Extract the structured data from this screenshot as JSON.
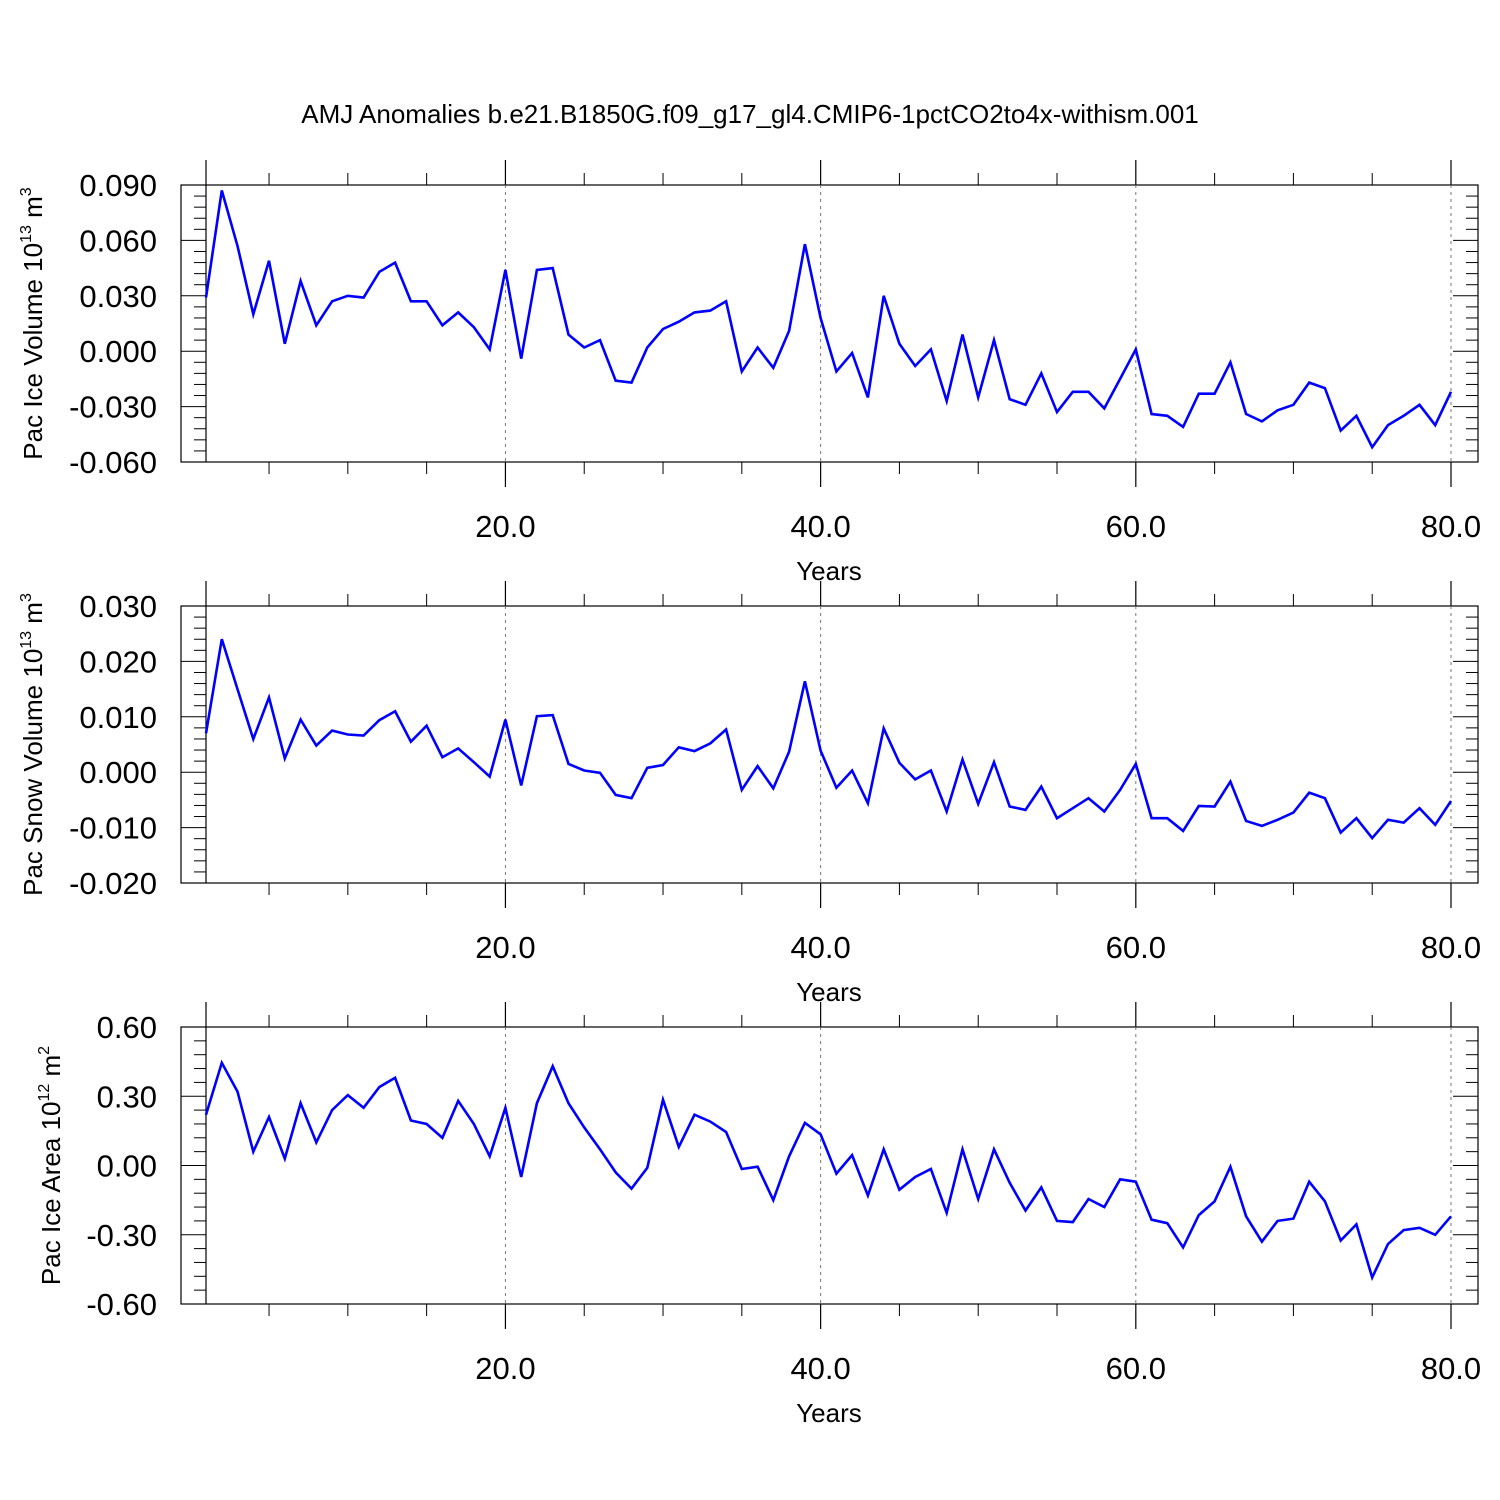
{
  "chart_data": [
    {
      "type": "line",
      "title": "AMJ Anomalies b.e21.B1850G.f09_g17_gl4.CMIP6-1pctCO2to4x-withism.001",
      "ylabel_text": "Pac Ice Volume 10",
      "ylabel_exp": "13",
      "ylabel_unit": " m",
      "ylabel_unit_exp": "3",
      "xlabel": "Years",
      "xlim": [
        1,
        80
      ],
      "ylim": [
        -0.06,
        0.09
      ],
      "xticks": [
        "20.0",
        "40.0",
        "60.0",
        "80.0"
      ],
      "xtick_values": [
        20,
        40,
        60,
        80
      ],
      "yticks": [
        "-0.060",
        "-0.030",
        "0.000",
        "0.030",
        "0.060",
        "0.090"
      ],
      "ytick_values": [
        -0.06,
        -0.03,
        0.0,
        0.03,
        0.06,
        0.09
      ],
      "grid": "vertical dashed at major x ticks",
      "series_color": "#0000ff",
      "x": [
        1,
        2,
        3,
        4,
        5,
        6,
        7,
        8,
        9,
        10,
        11,
        12,
        13,
        14,
        15,
        16,
        17,
        18,
        19,
        20,
        21,
        22,
        23,
        24,
        25,
        26,
        27,
        28,
        29,
        30,
        31,
        32,
        33,
        34,
        35,
        36,
        37,
        38,
        39,
        40,
        41,
        42,
        43,
        44,
        45,
        46,
        47,
        48,
        49,
        50,
        51,
        52,
        53,
        54,
        55,
        56,
        57,
        58,
        59,
        60,
        61,
        62,
        63,
        64,
        65,
        66,
        67,
        68,
        69,
        70,
        71,
        72,
        73,
        74,
        75,
        76,
        77,
        78,
        79,
        80
      ],
      "values": [
        0.029,
        0.087,
        0.057,
        0.02,
        0.049,
        0.004,
        0.038,
        0.014,
        0.027,
        0.03,
        0.029,
        0.043,
        0.048,
        0.027,
        0.027,
        0.014,
        0.021,
        0.013,
        0.001,
        0.044,
        -0.004,
        0.044,
        0.045,
        0.009,
        0.002,
        0.006,
        -0.016,
        -0.017,
        0.002,
        0.012,
        0.016,
        0.021,
        0.022,
        0.027,
        -0.011,
        0.002,
        -0.009,
        0.011,
        0.058,
        0.018,
        -0.011,
        -0.001,
        -0.025,
        0.03,
        0.004,
        -0.008,
        0.001,
        -0.027,
        0.009,
        -0.025,
        0.006,
        -0.026,
        -0.029,
        -0.012,
        -0.033,
        -0.022,
        -0.022,
        -0.031,
        -0.015,
        0.001,
        -0.034,
        -0.035,
        -0.041,
        -0.023,
        -0.023,
        -0.006,
        -0.034,
        -0.038,
        -0.032,
        -0.029,
        -0.017,
        -0.02,
        -0.043,
        -0.035,
        -0.052,
        -0.04,
        -0.035,
        -0.029,
        -0.04,
        -0.022
      ]
    },
    {
      "type": "line",
      "title": "",
      "ylabel_text": "Pac Snow Volume 10",
      "ylabel_exp": "13",
      "ylabel_unit": " m",
      "ylabel_unit_exp": "3",
      "xlabel": "Years",
      "xlim": [
        1,
        80
      ],
      "ylim": [
        -0.02,
        0.03
      ],
      "xticks": [
        "20.0",
        "40.0",
        "60.0",
        "80.0"
      ],
      "xtick_values": [
        20,
        40,
        60,
        80
      ],
      "yticks": [
        "-0.020",
        "-0.010",
        "0.000",
        "0.010",
        "0.020",
        "0.030"
      ],
      "ytick_values": [
        -0.02,
        -0.01,
        0.0,
        0.01,
        0.02,
        0.03
      ],
      "grid": "vertical dashed at major x ticks",
      "series_color": "#0000ff",
      "x": [
        1,
        2,
        3,
        4,
        5,
        6,
        7,
        8,
        9,
        10,
        11,
        12,
        13,
        14,
        15,
        16,
        17,
        18,
        19,
        20,
        21,
        22,
        23,
        24,
        25,
        26,
        27,
        28,
        29,
        30,
        31,
        32,
        33,
        34,
        35,
        36,
        37,
        38,
        39,
        40,
        41,
        42,
        43,
        44,
        45,
        46,
        47,
        48,
        49,
        50,
        51,
        52,
        53,
        54,
        55,
        56,
        57,
        58,
        59,
        60,
        61,
        62,
        63,
        64,
        65,
        66,
        67,
        68,
        69,
        70,
        71,
        72,
        73,
        74,
        75,
        76,
        77,
        78,
        79,
        80
      ],
      "values": [
        0.007,
        0.024,
        0.015,
        0.006,
        0.0135,
        0.0025,
        0.0095,
        0.0048,
        0.0075,
        0.0068,
        0.0066,
        0.0094,
        0.011,
        0.0055,
        0.0084,
        0.0027,
        0.0043,
        0.0018,
        -0.0008,
        0.0095,
        -0.0024,
        0.0101,
        0.0103,
        0.0015,
        0.0003,
        -0.0001,
        -0.0041,
        -0.0047,
        0.0008,
        0.0013,
        0.0045,
        0.0038,
        0.0052,
        0.0077,
        -0.0032,
        0.0011,
        -0.0029,
        0.0037,
        0.0164,
        0.0039,
        -0.0028,
        0.0003,
        -0.0056,
        0.0079,
        0.0017,
        -0.0013,
        0.0003,
        -0.0071,
        0.0023,
        -0.0057,
        0.0018,
        -0.0062,
        -0.0068,
        -0.0026,
        -0.0083,
        -0.0065,
        -0.0047,
        -0.0071,
        -0.0032,
        0.0015,
        -0.0083,
        -0.0083,
        -0.0106,
        -0.0061,
        -0.0062,
        -0.0017,
        -0.0088,
        -0.0097,
        -0.0086,
        -0.0073,
        -0.0037,
        -0.0047,
        -0.0109,
        -0.0083,
        -0.0119,
        -0.0086,
        -0.0091,
        -0.0065,
        -0.0095,
        -0.0052
      ]
    },
    {
      "type": "line",
      "title": "",
      "ylabel_text": "Pac Ice Area 10",
      "ylabel_exp": "12",
      "ylabel_unit": " m",
      "ylabel_unit_exp": "2",
      "xlabel": "Years",
      "xlim": [
        1,
        80
      ],
      "ylim": [
        -0.6,
        0.6
      ],
      "xticks": [
        "20.0",
        "40.0",
        "60.0",
        "80.0"
      ],
      "xtick_values": [
        20,
        40,
        60,
        80
      ],
      "yticks": [
        "-0.60",
        "-0.30",
        "0.00",
        "0.30",
        "0.60"
      ],
      "ytick_values": [
        -0.6,
        -0.3,
        0.0,
        0.3,
        0.6
      ],
      "grid": "vertical dashed at major x ticks",
      "series_color": "#0000ff",
      "x": [
        1,
        2,
        3,
        4,
        5,
        6,
        7,
        8,
        9,
        10,
        11,
        12,
        13,
        14,
        15,
        16,
        17,
        18,
        19,
        20,
        21,
        22,
        23,
        24,
        25,
        26,
        27,
        28,
        29,
        30,
        31,
        32,
        33,
        34,
        35,
        36,
        37,
        38,
        39,
        40,
        41,
        42,
        43,
        44,
        45,
        46,
        47,
        48,
        49,
        50,
        51,
        52,
        53,
        54,
        55,
        56,
        57,
        58,
        59,
        60,
        61,
        62,
        63,
        64,
        65,
        66,
        67,
        68,
        69,
        70,
        71,
        72,
        73,
        74,
        75,
        76,
        77,
        78,
        79,
        80
      ],
      "values": [
        0.22,
        0.445,
        0.32,
        0.06,
        0.21,
        0.03,
        0.27,
        0.1,
        0.24,
        0.305,
        0.25,
        0.34,
        0.38,
        0.195,
        0.18,
        0.12,
        0.28,
        0.18,
        0.04,
        0.25,
        -0.05,
        0.27,
        0.43,
        0.27,
        0.165,
        0.07,
        -0.03,
        -0.1,
        -0.01,
        0.285,
        0.08,
        0.22,
        0.19,
        0.145,
        -0.015,
        -0.005,
        -0.15,
        0.04,
        0.185,
        0.135,
        -0.035,
        0.045,
        -0.13,
        0.07,
        -0.105,
        -0.05,
        -0.015,
        -0.205,
        0.07,
        -0.145,
        0.07,
        -0.075,
        -0.195,
        -0.095,
        -0.24,
        -0.245,
        -0.145,
        -0.18,
        -0.06,
        -0.07,
        -0.235,
        -0.25,
        -0.355,
        -0.215,
        -0.155,
        -0.005,
        -0.22,
        -0.33,
        -0.24,
        -0.23,
        -0.07,
        -0.155,
        -0.325,
        -0.255,
        -0.485,
        -0.34,
        -0.28,
        -0.27,
        -0.3,
        -0.22
      ]
    }
  ]
}
